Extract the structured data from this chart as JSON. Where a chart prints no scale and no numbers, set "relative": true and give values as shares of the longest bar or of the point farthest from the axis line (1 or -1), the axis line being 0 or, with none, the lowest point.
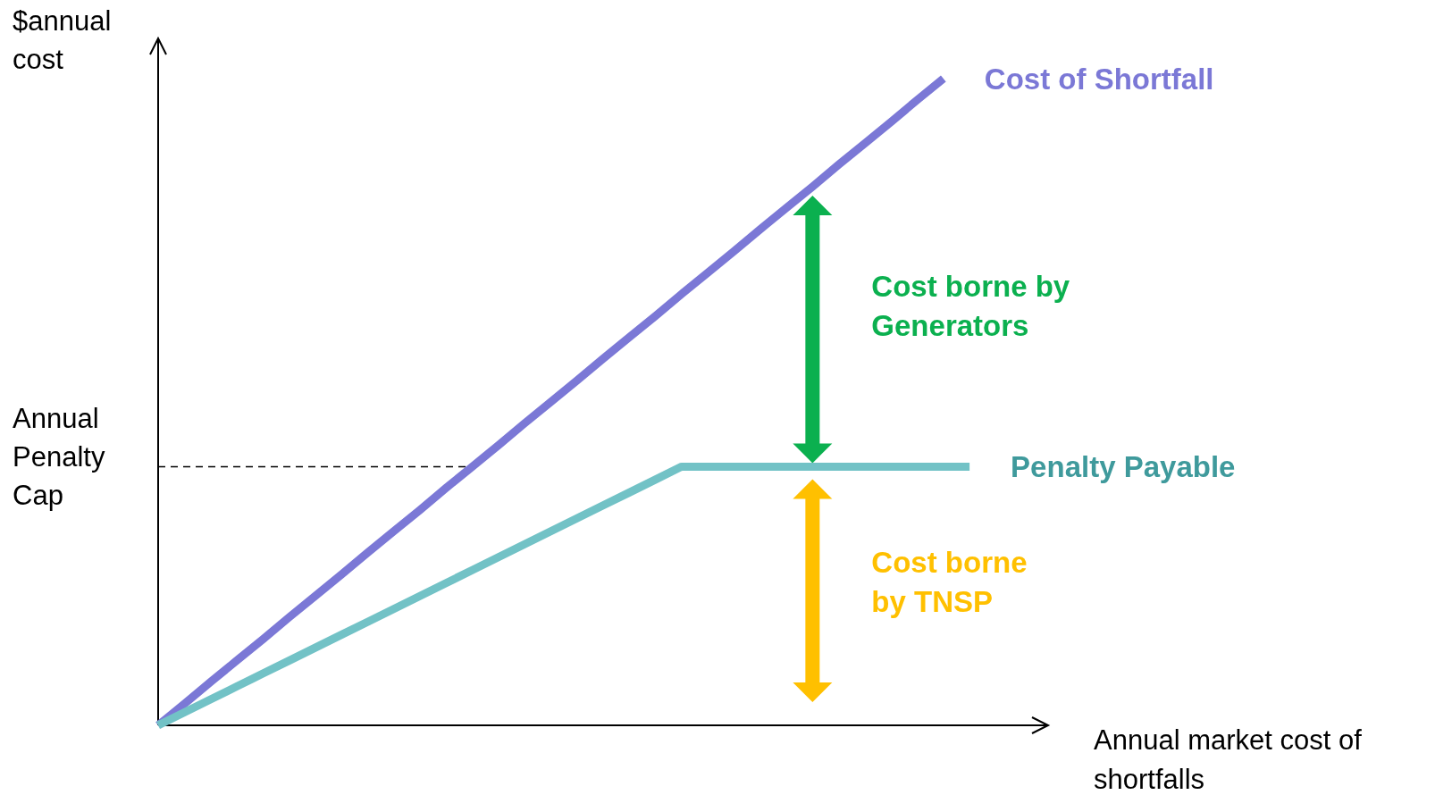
{
  "chart_data": {
    "type": "line",
    "relative": true,
    "xlabel": "Annual market cost of shortfalls",
    "ylabel": "$annual cost",
    "categories": [
      null,
      null,
      null,
      null,
      null,
      null,
      null,
      null,
      null,
      null,
      null,
      null,
      null,
      null,
      null,
      null,
      null,
      null,
      null,
      null,
      null,
      null,
      null,
      null,
      null,
      null,
      null,
      null,
      null,
      null,
      null,
      null,
      null,
      null,
      null
    ],
    "series": [
      {
        "name": "Cost of Shortfall",
        "color": "#7b78d6",
        "values": [
          0,
          0.033,
          0.067,
          0.1,
          0.133,
          0.167,
          0.2,
          0.233,
          0.267,
          0.3,
          0.333,
          0.367,
          0.4,
          0.433,
          0.467,
          0.5,
          0.533,
          0.567,
          0.6,
          0.633,
          0.667,
          0.7,
          0.733,
          0.767,
          0.8,
          0.833,
          0.867,
          0.9,
          0.933,
          0.967,
          1,
          null,
          null,
          null,
          null
        ]
      },
      {
        "name": "Penalty Payable",
        "color": "#72c2c6",
        "values": [
          0,
          0.02,
          0.04,
          0.06,
          0.08,
          0.1,
          0.12,
          0.14,
          0.16,
          0.18,
          0.2,
          0.22,
          0.24,
          0.26,
          0.28,
          0.3,
          0.32,
          0.34,
          0.36,
          0.38,
          0.4,
          0.4,
          0.4,
          0.4,
          0.4,
          0.4,
          0.4,
          0.4,
          0.4,
          0.4,
          0.4,
          0.4,
          null,
          null,
          null
        ]
      }
    ],
    "ref_lines": [
      {
        "axis": "y",
        "value": 0.4,
        "label": "Annual Penalty Cap",
        "line_style": "dashed",
        "color": "#000000"
      }
    ],
    "annotations": [
      "Cost borne by Generators",
      "Cost borne by TNSP"
    ]
  }
}
